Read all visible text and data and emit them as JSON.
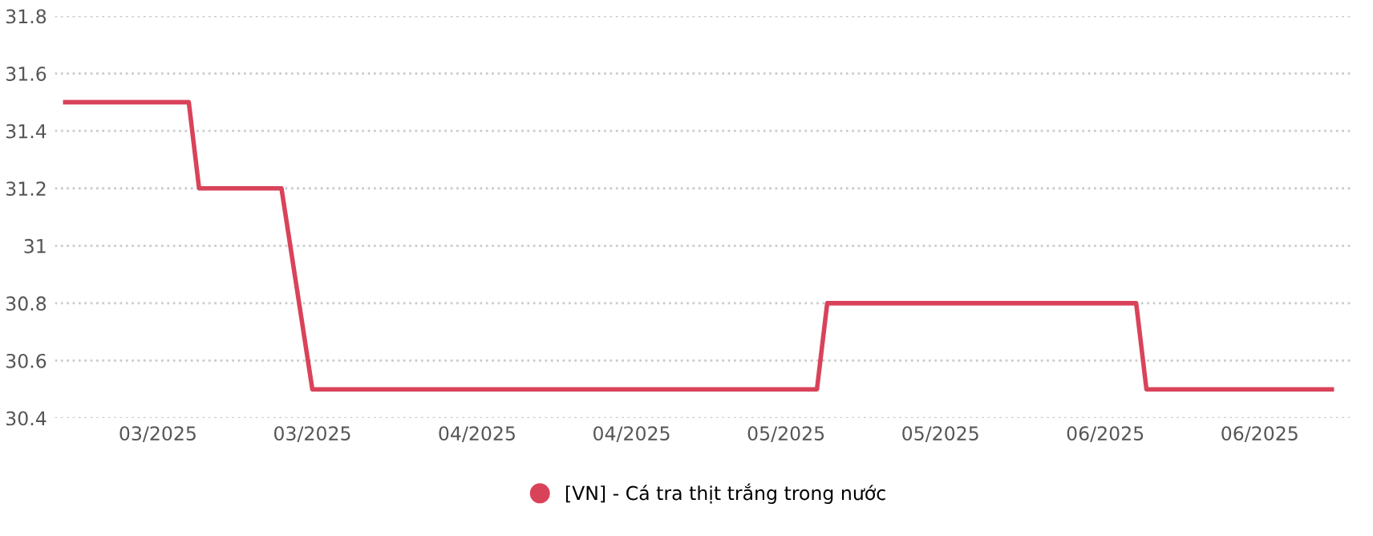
{
  "chart_data": {
    "type": "line",
    "x": [
      "2025-02-20",
      "2025-03-04",
      "2025-03-05",
      "2025-03-13",
      "2025-03-16",
      "2025-05-04",
      "2025-05-05",
      "2025-06-04",
      "2025-06-05",
      "2025-06-23"
    ],
    "series": [
      {
        "name": "[VN] - Cá tra thịt trắng trong nước",
        "color": "#d9435a",
        "values": [
          31.5,
          31.5,
          31.2,
          31.2,
          30.5,
          30.5,
          30.8,
          30.8,
          30.5,
          30.5
        ]
      }
    ],
    "xlim": [
      "2025-02-19",
      "2025-06-25"
    ],
    "xticks": [
      {
        "value": "2025-03-01",
        "label": "03/2025"
      },
      {
        "value": "2025-03-16",
        "label": "03/2025"
      },
      {
        "value": "2025-04-01",
        "label": "04/2025"
      },
      {
        "value": "2025-04-16",
        "label": "04/2025"
      },
      {
        "value": "2025-05-01",
        "label": "05/2025"
      },
      {
        "value": "2025-05-16",
        "label": "05/2025"
      },
      {
        "value": "2025-06-01",
        "label": "06/2025"
      },
      {
        "value": "2025-06-16",
        "label": "06/2025"
      }
    ],
    "ylim": [
      30.4,
      31.8
    ],
    "yticks": [
      30.4,
      30.6,
      30.8,
      31,
      31.2,
      31.4,
      31.6,
      31.8
    ],
    "grid": "y",
    "legend": "bottom",
    "line_style": "solid",
    "marker": "none"
  }
}
